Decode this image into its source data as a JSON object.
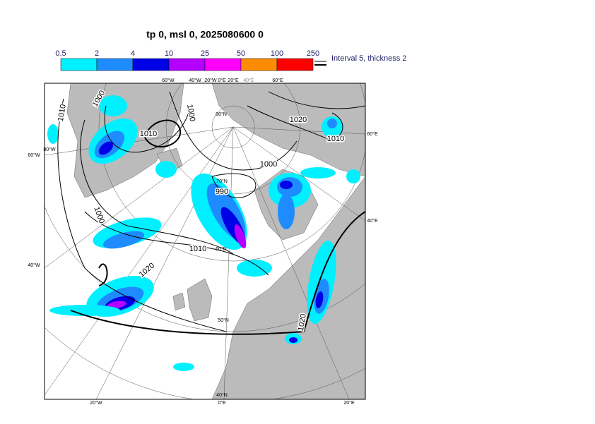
{
  "title": "tp 0, msl 0, 2025080600 0",
  "legend": {
    "levels": [
      "0.5",
      "2",
      "4",
      "10",
      "25",
      "50",
      "100",
      "250"
    ],
    "colors": [
      "#00f0ff",
      "#1e8cff",
      "#0000e6",
      "#b400ff",
      "#ff00ff",
      "#ff8c00",
      "#ff0000"
    ],
    "note": "Interval 5, thickness 2"
  },
  "contour_labels": [
    "1000",
    "1010",
    "1010",
    "1000",
    "1020",
    "1010",
    "1000",
    "990",
    "1000",
    "1010",
    "1020",
    "1020"
  ],
  "grid_labels": [
    "60°W",
    "40°W",
    "20°W",
    "0°E",
    "20°E",
    "40°E",
    "60°E",
    "80°N",
    "70°N",
    "60°N",
    "50°N",
    "40°N",
    "60°E",
    "40°E",
    "20°E",
    "0°E",
    "20°W",
    "40°W",
    "60°W",
    "80°W"
  ]
}
